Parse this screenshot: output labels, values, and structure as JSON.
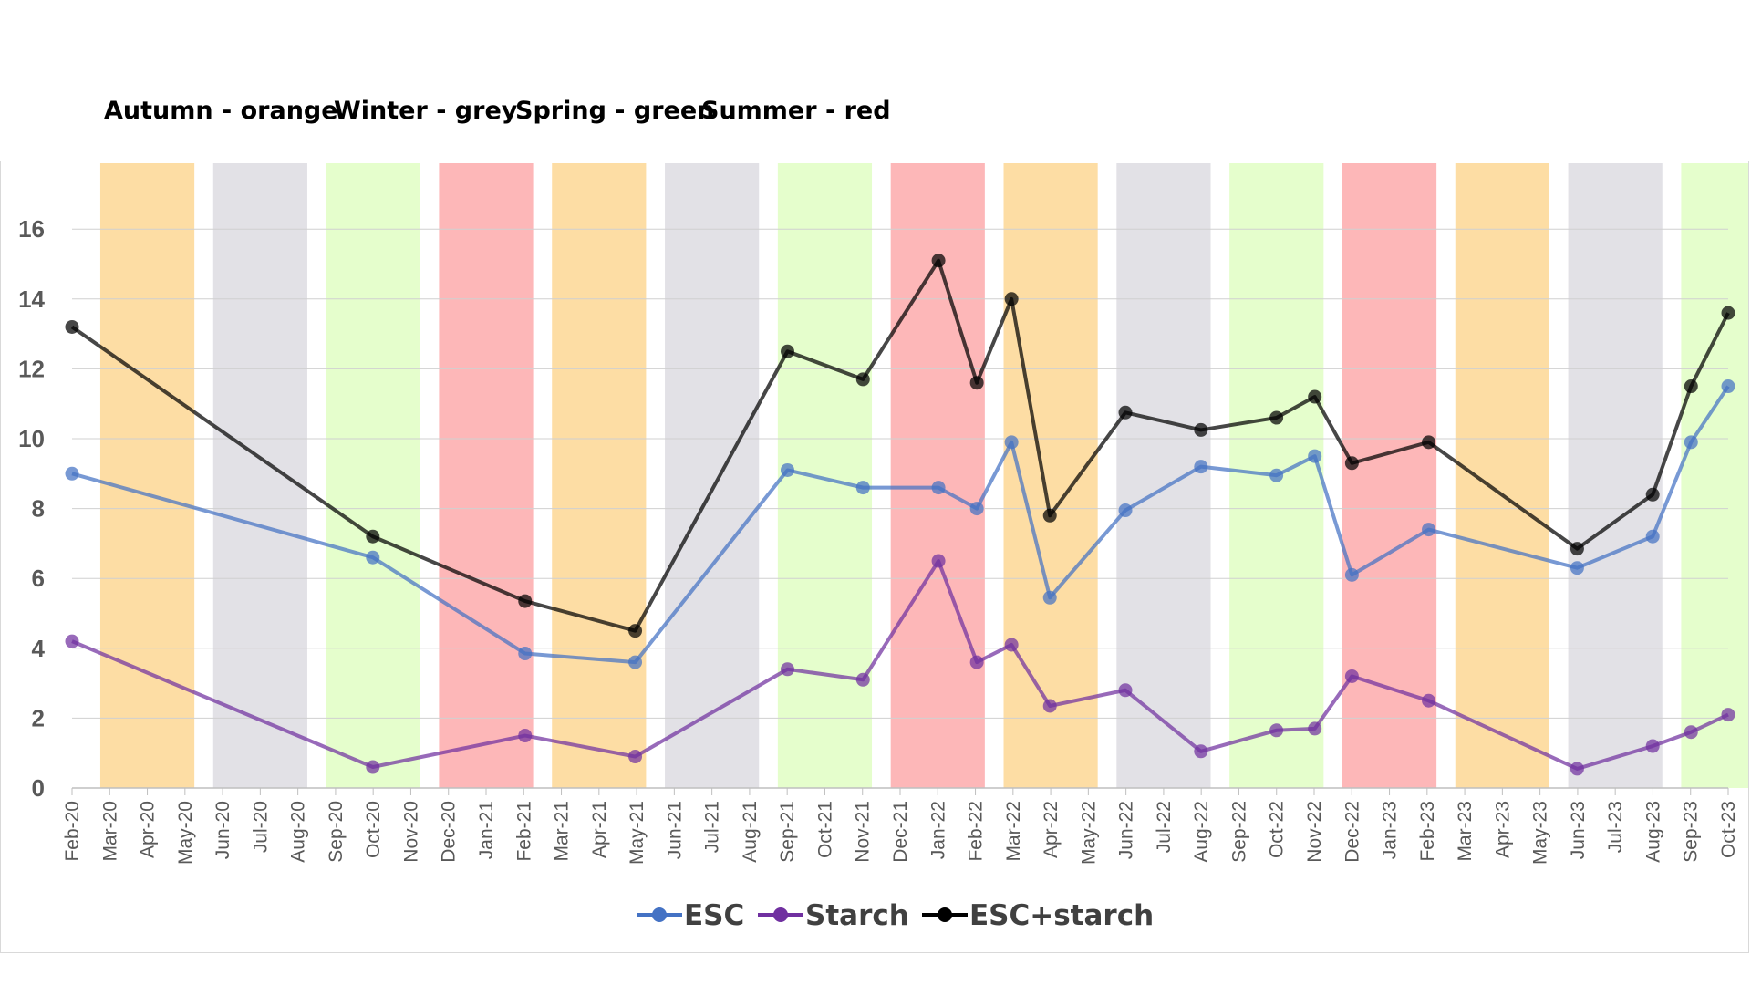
{
  "season_key": [
    {
      "text": "Autumn - orange"
    },
    {
      "text": "Winter - grey"
    },
    {
      "text": "Spring - green"
    },
    {
      "text": "Summer - red"
    }
  ],
  "season_colors": {
    "autumn": "#fddda4",
    "winter": "#e2e1e6",
    "spring": "#e5fecc",
    "summer": "#fdb7b8"
  },
  "chart_data": {
    "type": "line",
    "title": "",
    "xlabel": "",
    "ylabel": "",
    "ylim": [
      0,
      17
    ],
    "yticks": [
      0,
      2,
      4,
      6,
      8,
      10,
      12,
      14,
      16
    ],
    "grid": true,
    "legend_position": "bottom",
    "x_tick_labels": [
      "Feb-20",
      "Mar-20",
      "Apr-20",
      "May-20",
      "Jun-20",
      "Jul-20",
      "Aug-20",
      "Sep-20",
      "Oct-20",
      "Nov-20",
      "Dec-20",
      "Jan-21",
      "Feb-21",
      "Mar-21",
      "Apr-21",
      "May-21",
      "Jun-21",
      "Jul-21",
      "Aug-21",
      "Sep-21",
      "Oct-21",
      "Nov-21",
      "Dec-21",
      "Jan-22",
      "Feb-22",
      "Mar-22",
      "Apr-22",
      "May-22",
      "Jun-22",
      "Jul-22",
      "Aug-22",
      "Sep-22",
      "Oct-22",
      "Nov-22",
      "Dec-22",
      "Jan-23",
      "Feb-23",
      "Mar-23",
      "Apr-23",
      "May-23",
      "Jun-23",
      "Jul-23",
      "Aug-23",
      "Sep-23",
      "Oct-23"
    ],
    "season_bands": [
      {
        "season": "autumn",
        "from": "Mar-20",
        "to": "May-20"
      },
      {
        "season": "winter",
        "from": "Jun-20",
        "to": "Aug-20"
      },
      {
        "season": "spring",
        "from": "Sep-20",
        "to": "Nov-20"
      },
      {
        "season": "summer",
        "from": "Dec-20",
        "to": "Feb-21"
      },
      {
        "season": "autumn",
        "from": "Mar-21",
        "to": "May-21"
      },
      {
        "season": "winter",
        "from": "Jun-21",
        "to": "Aug-21"
      },
      {
        "season": "spring",
        "from": "Sep-21",
        "to": "Nov-21"
      },
      {
        "season": "summer",
        "from": "Dec-21",
        "to": "Feb-22"
      },
      {
        "season": "autumn",
        "from": "Mar-22",
        "to": "May-22"
      },
      {
        "season": "winter",
        "from": "Jun-22",
        "to": "Aug-22"
      },
      {
        "season": "spring",
        "from": "Sep-22",
        "to": "Nov-22"
      },
      {
        "season": "summer",
        "from": "Dec-22",
        "to": "Feb-23"
      },
      {
        "season": "autumn",
        "from": "Mar-23",
        "to": "May-23"
      },
      {
        "season": "winter",
        "from": "Jun-23",
        "to": "Aug-23"
      },
      {
        "season": "spring",
        "from": "Sep-23",
        "to": "Oct-23"
      }
    ],
    "x": [
      "2020-02-15",
      "2020-10-15",
      "2021-02-15",
      "2021-05-15",
      "2021-09-15",
      "2021-11-15",
      "2022-01-15",
      "2022-02-15",
      "2022-03-15",
      "2022-04-15",
      "2022-06-15",
      "2022-08-15",
      "2022-10-15",
      "2022-11-15",
      "2022-12-15",
      "2023-02-15",
      "2023-06-15",
      "2023-08-15",
      "2023-09-15",
      "2023-10-15"
    ],
    "series": [
      {
        "name": "ESC",
        "color": "#4472c4",
        "values": [
          9.0,
          6.6,
          3.85,
          3.6,
          9.1,
          8.6,
          8.6,
          8.0,
          9.9,
          5.45,
          7.95,
          9.2,
          8.95,
          9.5,
          6.1,
          7.4,
          6.3,
          7.2,
          9.9,
          11.5
        ]
      },
      {
        "name": "Starch",
        "color": "#7030a0",
        "values": [
          4.2,
          0.6,
          1.5,
          0.9,
          3.4,
          3.1,
          6.5,
          3.6,
          4.1,
          2.35,
          2.8,
          1.05,
          1.65,
          1.7,
          3.2,
          2.5,
          0.55,
          1.2,
          1.6,
          2.1
        ]
      },
      {
        "name": "ESC+starch",
        "color": "#000000",
        "values": [
          13.2,
          7.2,
          5.35,
          4.5,
          12.5,
          11.7,
          15.1,
          11.6,
          14.0,
          7.8,
          10.75,
          10.25,
          10.6,
          11.2,
          9.3,
          9.9,
          6.85,
          8.4,
          11.5,
          13.6
        ]
      }
    ]
  }
}
